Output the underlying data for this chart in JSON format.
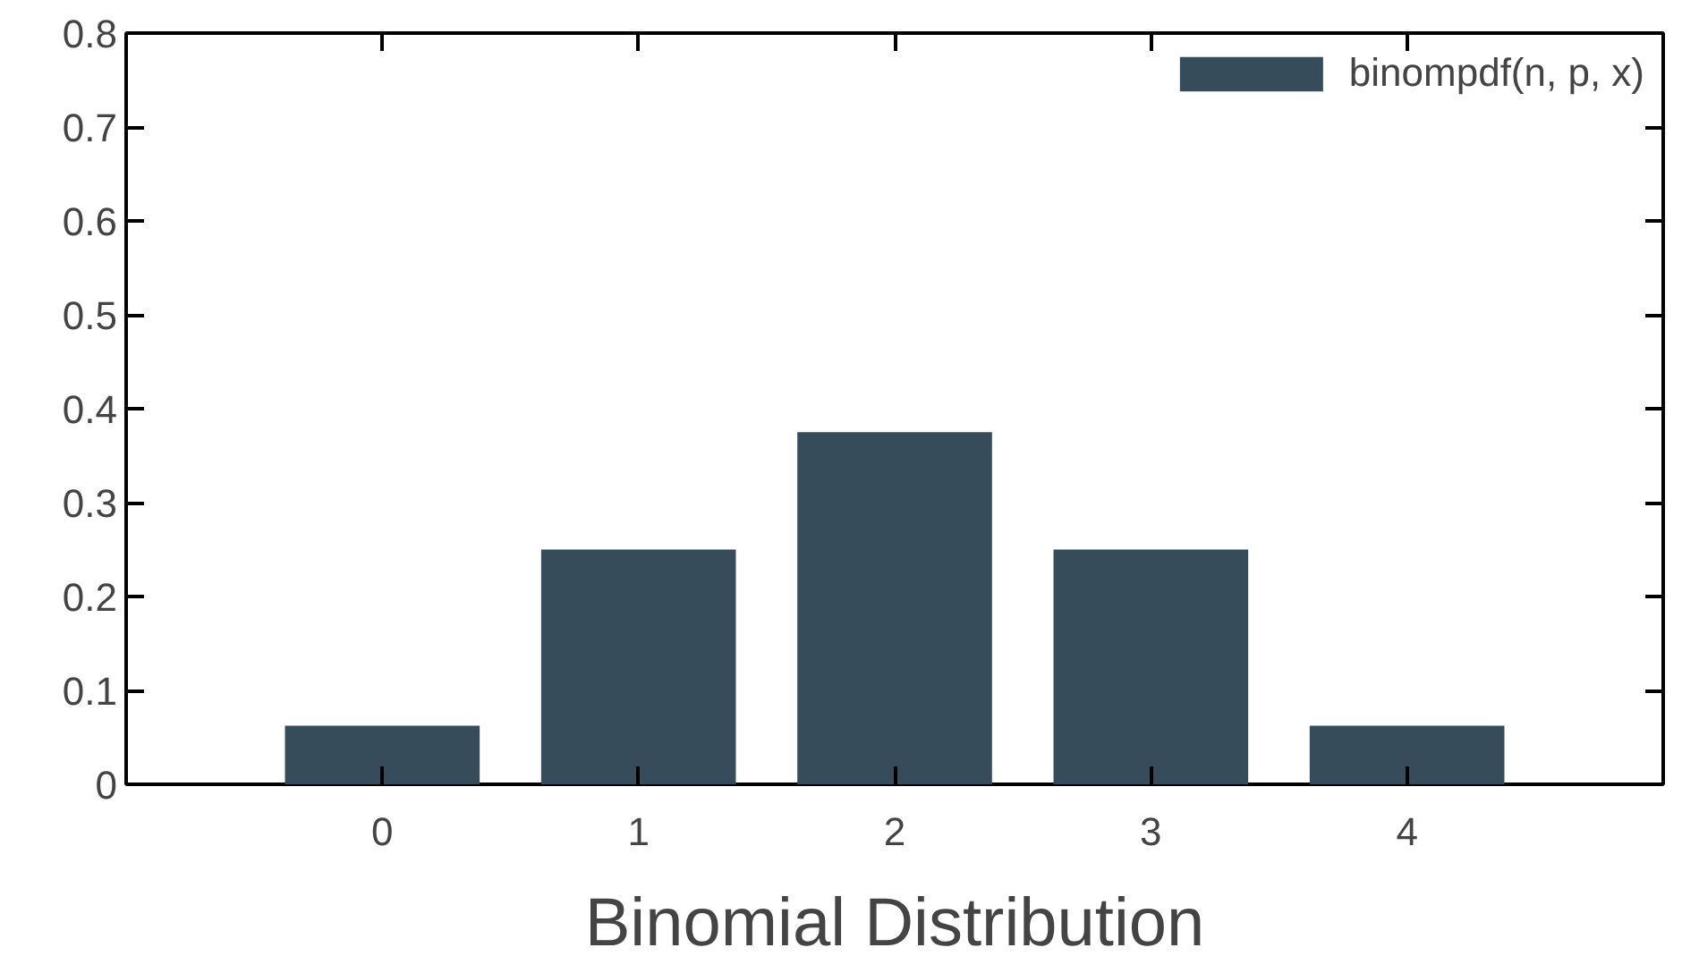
{
  "chart_data": {
    "type": "bar",
    "xlabel": "Binomial Distribution",
    "x": [
      0,
      1,
      2,
      3,
      4
    ],
    "series": [
      {
        "name": "binompdf(n, p, x)",
        "color": "#374c5b",
        "values": [
          0.0625,
          0.25,
          0.375,
          0.25,
          0.0625
        ]
      }
    ],
    "xlim": [
      -1,
      5
    ],
    "xticks": [
      0,
      1,
      2,
      3,
      4
    ],
    "ylim": [
      0,
      0.8
    ],
    "yticks": [
      0,
      0.1,
      0.2,
      0.3,
      0.4,
      0.5,
      0.6,
      0.7,
      0.8
    ],
    "grid": false,
    "legend": "top right"
  }
}
